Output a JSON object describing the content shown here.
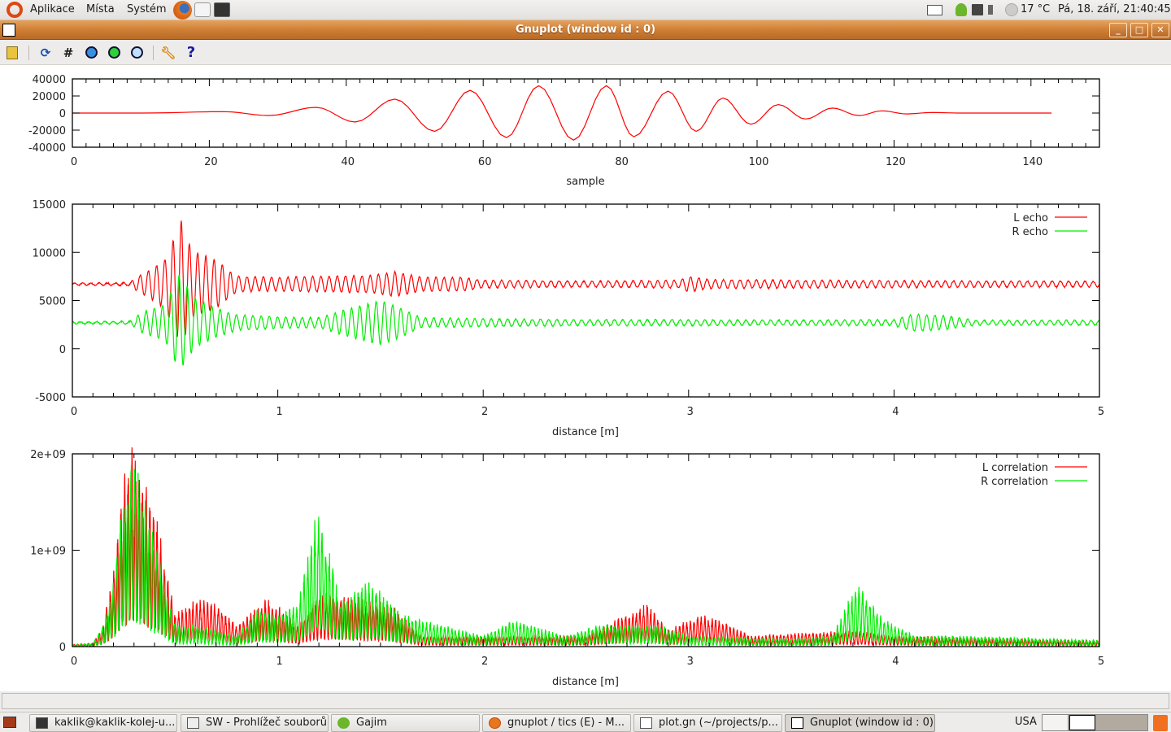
{
  "top_panel": {
    "menus": [
      "Aplikace",
      "Místa",
      "Systém"
    ],
    "launchers": [
      "firefox-icon",
      "mail-icon",
      "terminal-icon"
    ],
    "tray_icons": [
      "mail-icon",
      "gajim-icon",
      "network-icon",
      "volume-icon",
      "weather-icon"
    ],
    "weather": "17 °C",
    "clock": "Pá, 18. září, 21:40:45"
  },
  "window": {
    "title": "Gnuplot (window id : 0)",
    "buttons": [
      "minimize",
      "maximize",
      "close"
    ]
  },
  "toolbar": {
    "buttons": [
      {
        "name": "copy-to-clipboard",
        "icon": "clipboard-icon"
      },
      {
        "name": "replot",
        "icon": "refresh-icon"
      },
      {
        "name": "grid",
        "icon": "grid-icon"
      },
      {
        "name": "previous-zoom",
        "icon": "zoom-previous-icon"
      },
      {
        "name": "next-zoom",
        "icon": "zoom-next-icon"
      },
      {
        "name": "autoscale",
        "icon": "autoscale-icon"
      },
      {
        "name": "options",
        "icon": "wrench-icon"
      },
      {
        "name": "help",
        "icon": "help-icon"
      }
    ],
    "help_glyph": "?"
  },
  "chart_data": [
    {
      "type": "line",
      "xlabel": "sample",
      "ylabel": "",
      "xlim": [
        0,
        150
      ],
      "ylim": [
        -40000,
        40000
      ],
      "xticks": [
        "0",
        "20",
        "40",
        "60",
        "80",
        "100",
        "120",
        "140"
      ],
      "yticks": [
        "40000",
        "20000",
        "0",
        "-20000",
        "-40000"
      ],
      "grid": false,
      "series": [
        {
          "color": "#ff0000",
          "extrema": [
            [
              0,
              0
            ],
            [
              10,
              0
            ],
            [
              22.2,
              1600
            ],
            [
              28.7,
              -2900
            ],
            [
              35.6,
              6700
            ],
            [
              41.3,
              -10500
            ],
            [
              47.1,
              16300
            ],
            [
              52.9,
              -21400
            ],
            [
              58.1,
              26600
            ],
            [
              63.4,
              -28800
            ],
            [
              68.1,
              32000
            ],
            [
              73.2,
              -31700
            ],
            [
              78,
              32000
            ],
            [
              82,
              -27800
            ],
            [
              87,
              25600
            ],
            [
              91.1,
              -21400
            ],
            [
              95,
              17600
            ],
            [
              99.1,
              -13100
            ],
            [
              103.1,
              9900
            ],
            [
              107.1,
              -7000
            ],
            [
              111,
              5800
            ],
            [
              114.9,
              -2900
            ],
            [
              118.2,
              2600
            ],
            [
              121.9,
              -1000
            ],
            [
              125.4,
              600
            ],
            [
              130,
              0
            ],
            [
              143,
              0
            ]
          ]
        }
      ]
    },
    {
      "type": "line",
      "xlabel": "distance [m]",
      "ylabel": "",
      "xlim": [
        0,
        5
      ],
      "ylim": [
        -5000,
        15000
      ],
      "xticks": [
        "0",
        "1",
        "2",
        "3",
        "4",
        "5"
      ],
      "yticks": [
        "15000",
        "10000",
        "5000",
        "0",
        "-5000"
      ],
      "grid": false,
      "legend": "top-right",
      "series": [
        {
          "name": "L echo",
          "color": "#ff0000",
          "baseline": 6700,
          "envelope": [
            [
              0,
              100
            ],
            [
              0.28,
              150
            ],
            [
              0.32,
              800
            ],
            [
              0.38,
              1500
            ],
            [
              0.45,
              2500
            ],
            [
              0.5,
              5000
            ],
            [
              0.53,
              6600
            ],
            [
              0.58,
              3500
            ],
            [
              0.7,
              2500
            ],
            [
              0.8,
              800
            ],
            [
              1.0,
              700
            ],
            [
              1.2,
              800
            ],
            [
              1.45,
              900
            ],
            [
              1.57,
              1300
            ],
            [
              1.7,
              700
            ],
            [
              1.9,
              700
            ],
            [
              2.0,
              400
            ],
            [
              2.5,
              300
            ],
            [
              2.95,
              400
            ],
            [
              3.0,
              800
            ],
            [
              3.1,
              450
            ],
            [
              3.5,
              400
            ],
            [
              4.0,
              350
            ],
            [
              5.0,
              300
            ]
          ]
        },
        {
          "name": "R echo",
          "color": "#00ee00",
          "baseline": 2700,
          "envelope": [
            [
              0,
              100
            ],
            [
              0.28,
              150
            ],
            [
              0.35,
              1200
            ],
            [
              0.45,
              1800
            ],
            [
              0.52,
              5000
            ],
            [
              0.6,
              2500
            ],
            [
              0.7,
              1500
            ],
            [
              0.8,
              800
            ],
            [
              1.0,
              600
            ],
            [
              1.2,
              500
            ],
            [
              1.35,
              1500
            ],
            [
              1.5,
              2300
            ],
            [
              1.6,
              1500
            ],
            [
              1.7,
              500
            ],
            [
              2.0,
              400
            ],
            [
              2.5,
              300
            ],
            [
              3.0,
              300
            ],
            [
              3.5,
              250
            ],
            [
              4.0,
              300
            ],
            [
              4.1,
              900
            ],
            [
              4.25,
              700
            ],
            [
              4.4,
              250
            ],
            [
              5.0,
              250
            ]
          ]
        }
      ]
    },
    {
      "type": "line",
      "xlabel": "distance [m]",
      "ylabel": "",
      "xlim": [
        0,
        5
      ],
      "ylim": [
        0,
        2000000000
      ],
      "xticks": [
        "0",
        "1",
        "2",
        "3",
        "4",
        "5"
      ],
      "yticks": [
        "2e+09",
        "1e+09",
        "0"
      ],
      "grid": false,
      "legend": "top-right",
      "series": [
        {
          "name": "L correlation",
          "color": "#ff0000",
          "envelope": [
            [
              0,
              20000000.0
            ],
            [
              0.1,
              30000000.0
            ],
            [
              0.15,
              200000000.0
            ],
            [
              0.2,
              700000000.0
            ],
            [
              0.25,
              1600000000.0
            ],
            [
              0.3,
              2000000000.0
            ],
            [
              0.35,
              1500000000.0
            ],
            [
              0.4,
              1300000000.0
            ],
            [
              0.45,
              800000000.0
            ],
            [
              0.5,
              300000000.0
            ],
            [
              0.6,
              450000000.0
            ],
            [
              0.7,
              400000000.0
            ],
            [
              0.8,
              200000000.0
            ],
            [
              0.95,
              450000000.0
            ],
            [
              1.05,
              300000000.0
            ],
            [
              1.1,
              200000000.0
            ],
            [
              1.2,
              500000000.0
            ],
            [
              1.3,
              500000000.0
            ],
            [
              1.4,
              450000000.0
            ],
            [
              1.55,
              400000000.0
            ],
            [
              1.7,
              100000000.0
            ],
            [
              2.0,
              100000000.0
            ],
            [
              2.5,
              100000000.0
            ],
            [
              2.8,
              400000000.0
            ],
            [
              2.9,
              150000000.0
            ],
            [
              3.05,
              300000000.0
            ],
            [
              3.15,
              250000000.0
            ],
            [
              3.3,
              100000000.0
            ],
            [
              3.8,
              150000000.0
            ],
            [
              4.0,
              100000000.0
            ],
            [
              5.0,
              50000000.0
            ]
          ]
        },
        {
          "name": "R correlation",
          "color": "#00ee00",
          "envelope": [
            [
              0,
              20000000.0
            ],
            [
              0.1,
              30000000.0
            ],
            [
              0.15,
              200000000.0
            ],
            [
              0.2,
              600000000.0
            ],
            [
              0.25,
              1500000000.0
            ],
            [
              0.3,
              1800000000.0
            ],
            [
              0.35,
              1500000000.0
            ],
            [
              0.45,
              600000000.0
            ],
            [
              0.5,
              200000000.0
            ],
            [
              0.6,
              200000000.0
            ],
            [
              0.8,
              100000000.0
            ],
            [
              0.9,
              350000000.0
            ],
            [
              1.0,
              300000000.0
            ],
            [
              1.1,
              400000000.0
            ],
            [
              1.2,
              1350000000.0
            ],
            [
              1.25,
              900000000.0
            ],
            [
              1.3,
              450000000.0
            ],
            [
              1.45,
              600000000.0
            ],
            [
              1.6,
              300000000.0
            ],
            [
              1.8,
              200000000.0
            ],
            [
              2.0,
              100000000.0
            ],
            [
              2.15,
              250000000.0
            ],
            [
              2.4,
              100000000.0
            ],
            [
              2.55,
              200000000.0
            ],
            [
              2.7,
              200000000.0
            ],
            [
              2.85,
              200000000.0
            ],
            [
              3.0,
              100000000.0
            ],
            [
              3.5,
              70000000.0
            ],
            [
              3.7,
              100000000.0
            ],
            [
              3.82,
              600000000.0
            ],
            [
              3.95,
              250000000.0
            ],
            [
              4.1,
              100000000.0
            ],
            [
              4.3,
              100000000.0
            ],
            [
              5.0,
              60000000.0
            ]
          ]
        }
      ]
    }
  ],
  "taskbar": {
    "items": [
      {
        "label": "kaklik@kaklik-kolej-u...",
        "icon": "terminal-icon"
      },
      {
        "label": "SW - Prohlížeč souborů",
        "icon": "file-manager-icon"
      },
      {
        "label": "Gajim",
        "icon": "gajim-icon"
      },
      {
        "label": "gnuplot / tics (E) - M...",
        "icon": "firefox-icon"
      },
      {
        "label": "plot.gn (~/projects/p...",
        "icon": "text-editor-icon"
      },
      {
        "label": "Gnuplot (window id : 0)",
        "icon": "gnuplot-icon",
        "active": true
      }
    ],
    "keyboard_layout": "USA"
  }
}
